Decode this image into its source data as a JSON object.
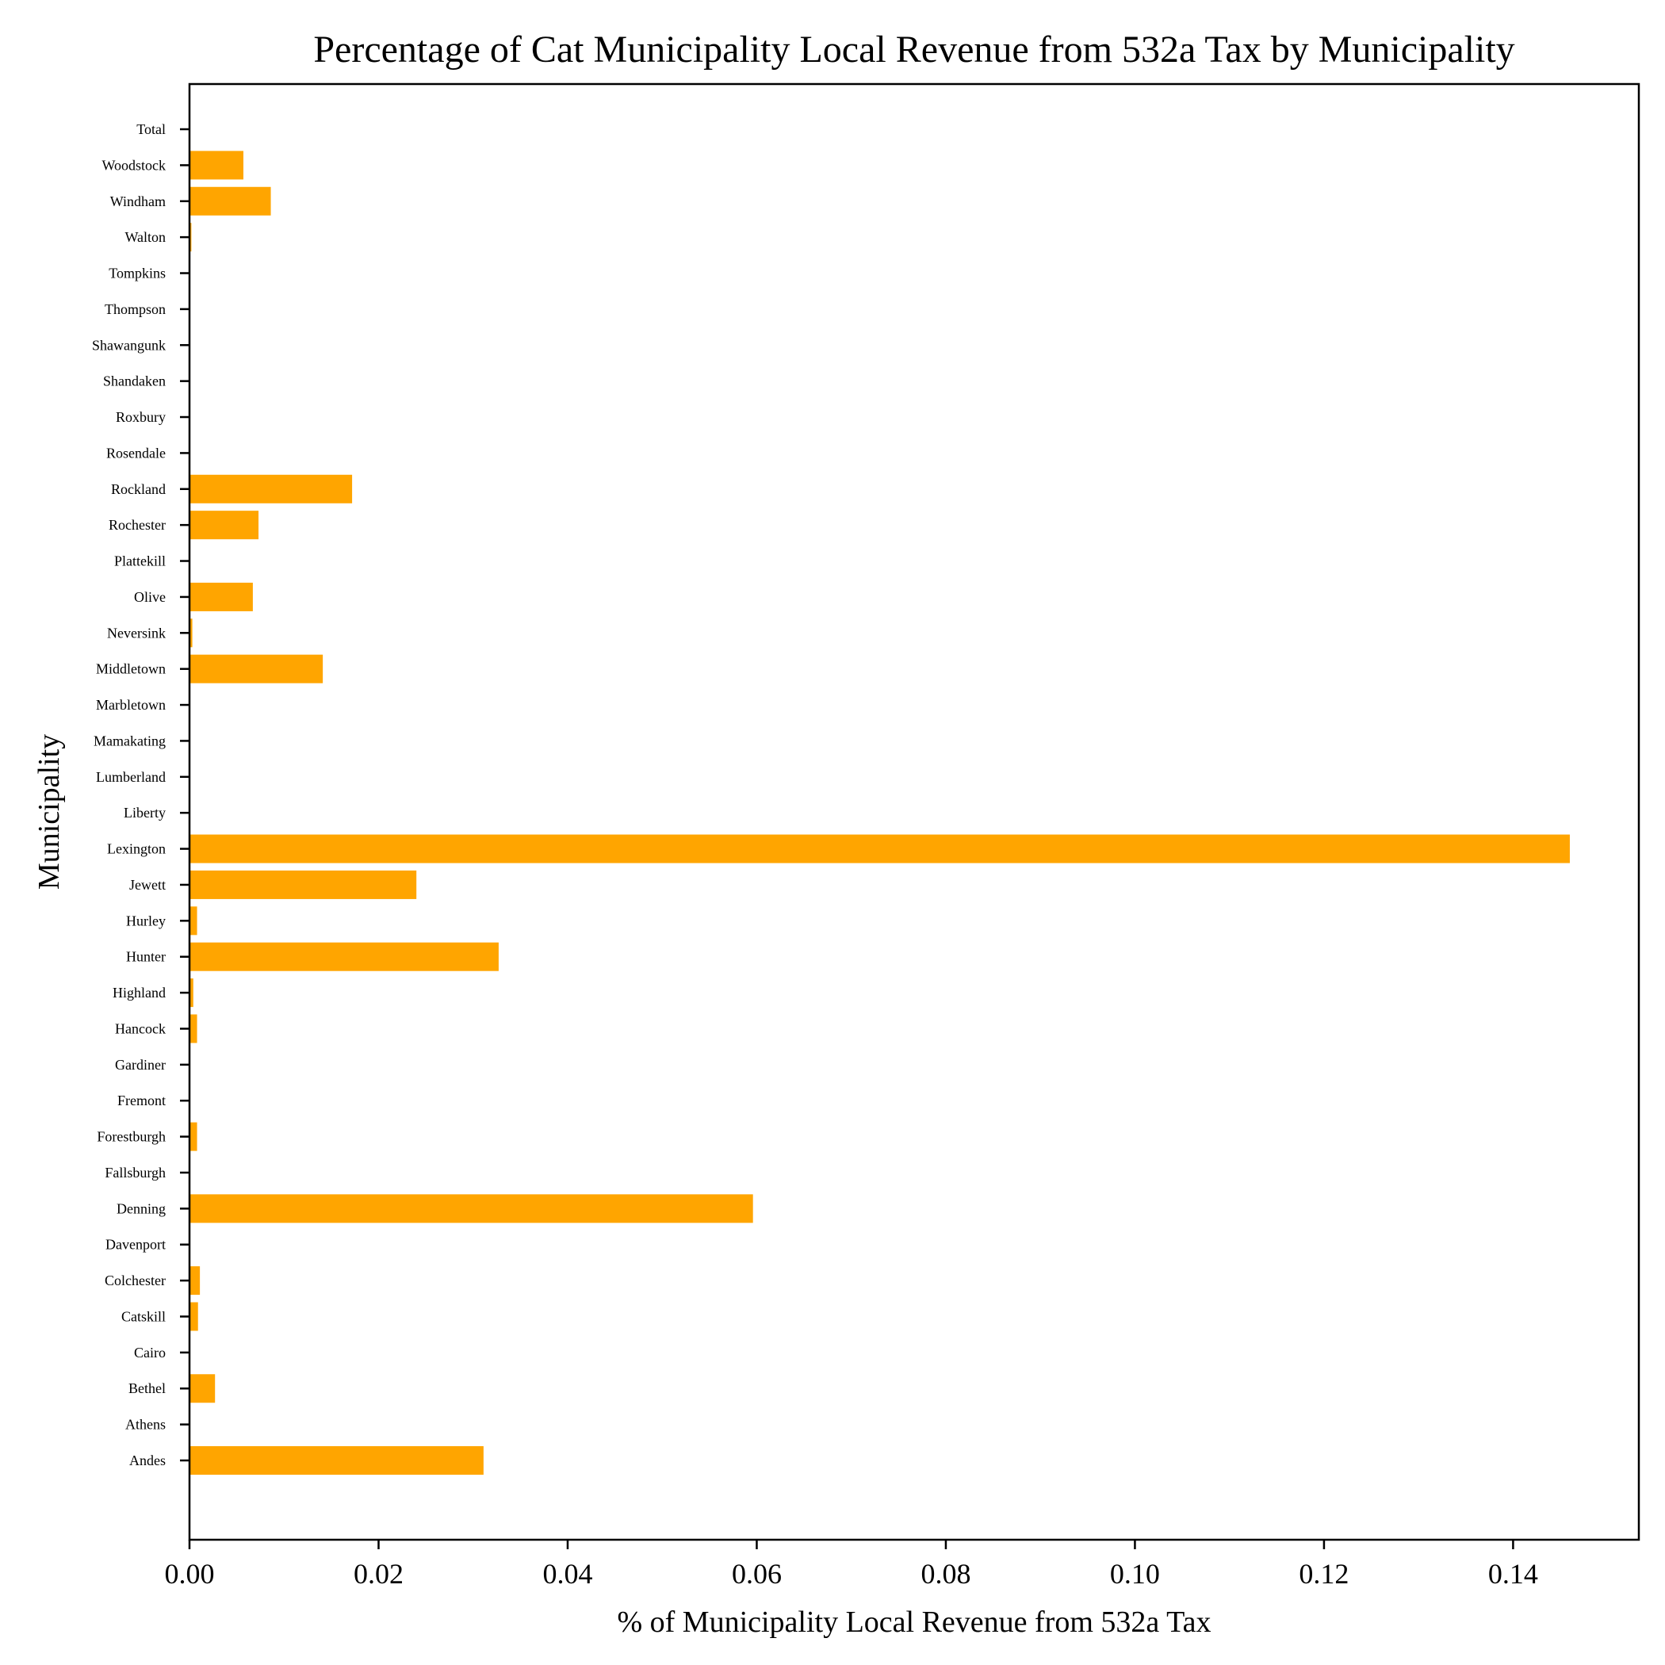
{
  "chart_data": {
    "type": "bar",
    "orientation": "horizontal",
    "title": "Percentage of Cat Municipality Local Revenue from 532a Tax by Municipality",
    "xlabel": "% of Municipality Local Revenue from 532a Tax",
    "ylabel": "Municipality",
    "xlim": [
      0,
      0.1533
    ],
    "xticks": [
      0.0,
      0.02,
      0.04,
      0.06,
      0.08,
      0.1,
      0.12,
      0.14
    ],
    "xtick_labels": [
      "0.00",
      "0.02",
      "0.04",
      "0.06",
      "0.08",
      "0.10",
      "0.12",
      "0.14"
    ],
    "grid": false,
    "bar_color": "#FFA500",
    "categories": [
      "Andes",
      "Athens",
      "Bethel",
      "Cairo",
      "Catskill",
      "Colchester",
      "Davenport",
      "Denning",
      "Fallsburgh",
      "Forestburgh",
      "Fremont",
      "Gardiner",
      "Hancock",
      "Highland",
      "Hunter",
      "Hurley",
      "Jewett",
      "Lexington",
      "Liberty",
      "Lumberland",
      "Mamakating",
      "Marbletown",
      "Middletown",
      "Neversink",
      "Olive",
      "Plattekill",
      "Rochester",
      "Rockland",
      "Rosendale",
      "Roxbury",
      "Shandaken",
      "Shawangunk",
      "Thompson",
      "Tompkins",
      "Walton",
      "Windham",
      "Woodstock",
      "Total"
    ],
    "values": [
      0.0311,
      0,
      0.0027,
      0,
      0.0009,
      0.0011,
      0,
      0.0596,
      0,
      0.0008,
      0,
      0,
      0.0008,
      0.0004,
      0.0327,
      0.0008,
      0.024,
      0.146,
      0,
      0,
      0,
      0,
      0.0141,
      0.0003,
      0.0067,
      0,
      0.0073,
      0.0172,
      0,
      0,
      0,
      0,
      0,
      0,
      0.0002,
      0.0086,
      0.0057,
      0
    ]
  }
}
